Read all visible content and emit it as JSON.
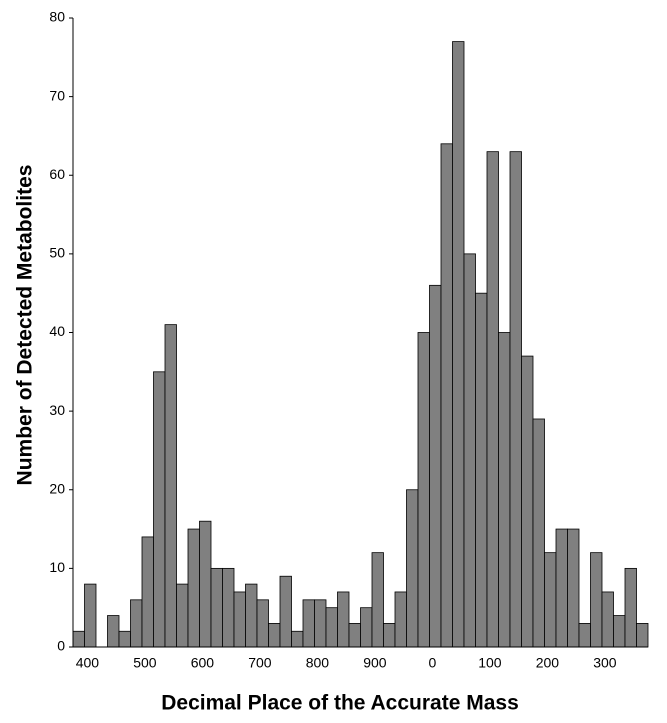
{
  "chart_data": {
    "type": "bar",
    "x_label": "Decimal Place of the Accurate Mass",
    "y_label": "Number of Detected Metabolites",
    "categories": [
      null,
      "400",
      null,
      null,
      null,
      null,
      "500",
      null,
      null,
      null,
      null,
      "600",
      null,
      null,
      null,
      null,
      "700",
      null,
      null,
      null,
      null,
      "800",
      null,
      null,
      null,
      null,
      "900",
      null,
      null,
      null,
      null,
      "0",
      null,
      null,
      null,
      null,
      "100",
      null,
      null,
      null,
      null,
      "200",
      null,
      null,
      null,
      null,
      "300",
      null,
      null,
      null
    ],
    "values": [
      2,
      8,
      0,
      4,
      2,
      6,
      14,
      35,
      41,
      8,
      15,
      16,
      10,
      10,
      7,
      8,
      6,
      3,
      9,
      2,
      6,
      6,
      5,
      7,
      3,
      5,
      12,
      3,
      7,
      20,
      40,
      46,
      64,
      77,
      50,
      45,
      63,
      40,
      63,
      37,
      29,
      12,
      15,
      15,
      3,
      12,
      7,
      4,
      10,
      3
    ],
    "color": "#808080",
    "ylim": [
      0,
      80
    ],
    "yticks": [
      0,
      10,
      20,
      30,
      40,
      50,
      60,
      70,
      80
    ],
    "grid": false
  }
}
